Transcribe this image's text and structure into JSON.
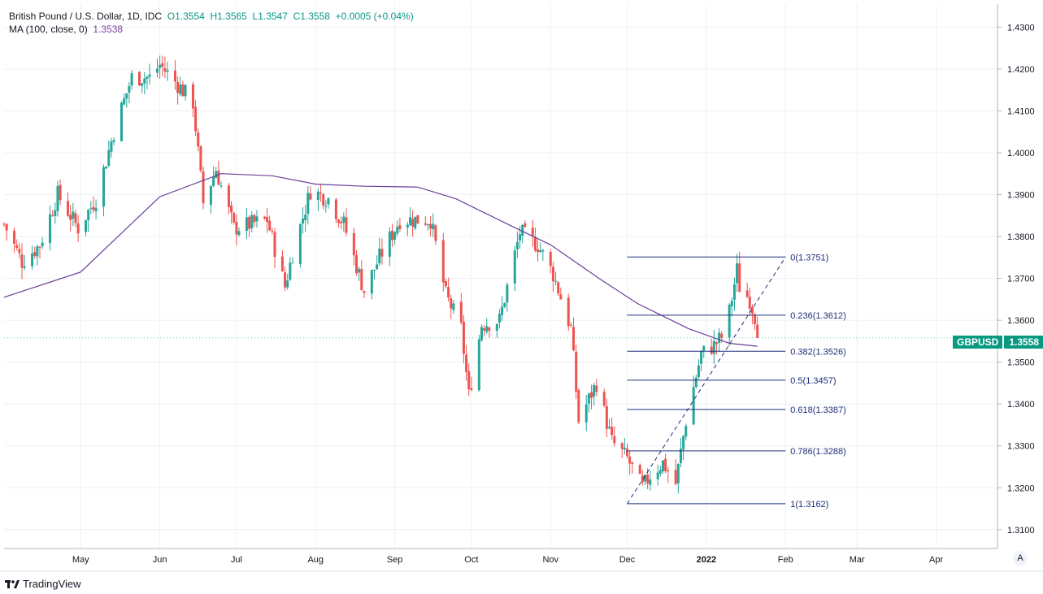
{
  "legend": {
    "symbol": "British Pound / U.S. Dollar, 1D, IDC",
    "open": "O1.3554",
    "high": "H1.3565",
    "low": "L1.3547",
    "close": "C1.3558",
    "change": "+0.0005 (+0.04%)",
    "ma_label": "MA (100, close, 0)",
    "ma_value": "1.3538"
  },
  "price_tag": {
    "ticker": "GBPUSD",
    "price": "1.3558"
  },
  "brand": "TradingView",
  "auto_label": "A",
  "colors": {
    "up": "#26a69a",
    "down": "#ef5350",
    "ma": "#6a3d9a",
    "fib": "#1f2d7a",
    "grid": "#eef0f3",
    "accent": "#089981"
  },
  "chart_data": {
    "type": "candlestick",
    "title": "British Pound / U.S. Dollar, 1D, IDC",
    "ylim": [
      1.3055,
      1.4355
    ],
    "y_ticks": [
      "1.3100",
      "1.3200",
      "1.3300",
      "1.3400",
      "1.3500",
      "1.3600",
      "1.3700",
      "1.3800",
      "1.3900",
      "1.4000",
      "1.4100",
      "1.4200",
      "1.4300"
    ],
    "x_tick_labels": [
      {
        "label": "May",
        "date": "2021-05-01"
      },
      {
        "label": "Jun",
        "date": "2021-06-01"
      },
      {
        "label": "Jul",
        "date": "2021-07-01"
      },
      {
        "label": "Aug",
        "date": "2021-08-01"
      },
      {
        "label": "Sep",
        "date": "2021-09-01"
      },
      {
        "label": "Oct",
        "date": "2021-10-01"
      },
      {
        "label": "Nov",
        "date": "2021-11-01"
      },
      {
        "label": "Dec",
        "date": "2021-12-01"
      },
      {
        "label": "2022",
        "date": "2022-01-01",
        "bold": true
      },
      {
        "label": "Feb",
        "date": "2022-02-01"
      },
      {
        "label": "Mar",
        "date": "2022-03-01"
      },
      {
        "label": "Apr",
        "date": "2022-04-01"
      }
    ],
    "x_range": [
      "2021-04-01",
      "2022-04-25"
    ],
    "price_path": [
      [
        "2021-04-01",
        1.383
      ],
      [
        "2021-04-08",
        1.374
      ],
      [
        "2021-04-15",
        1.378
      ],
      [
        "2021-04-22",
        1.39
      ],
      [
        "2021-04-30",
        1.382
      ],
      [
        "2021-05-07",
        1.389
      ],
      [
        "2021-05-14",
        1.405
      ],
      [
        "2021-05-21",
        1.418
      ],
      [
        "2021-05-28",
        1.418
      ],
      [
        "2021-06-01",
        1.421
      ],
      [
        "2021-06-07",
        1.417
      ],
      [
        "2021-06-14",
        1.412
      ],
      [
        "2021-06-18",
        1.388
      ],
      [
        "2021-06-23",
        1.396
      ],
      [
        "2021-06-30",
        1.382
      ],
      [
        "2021-07-07",
        1.383
      ],
      [
        "2021-07-13",
        1.384
      ],
      [
        "2021-07-20",
        1.368
      ],
      [
        "2021-07-23",
        1.376
      ],
      [
        "2021-07-30",
        1.391
      ],
      [
        "2021-08-06",
        1.389
      ],
      [
        "2021-08-12",
        1.383
      ],
      [
        "2021-08-20",
        1.367
      ],
      [
        "2021-08-26",
        1.375
      ],
      [
        "2021-09-03",
        1.384
      ],
      [
        "2021-09-10",
        1.384
      ],
      [
        "2021-09-15",
        1.384
      ],
      [
        "2021-09-21",
        1.366
      ],
      [
        "2021-09-27",
        1.358
      ],
      [
        "2021-09-30",
        1.342
      ],
      [
        "2021-10-05",
        1.359
      ],
      [
        "2021-10-12",
        1.36
      ],
      [
        "2021-10-20",
        1.381
      ],
      [
        "2021-10-27",
        1.378
      ],
      [
        "2021-11-02",
        1.371
      ],
      [
        "2021-11-09",
        1.358
      ],
      [
        "2021-11-12",
        1.336
      ],
      [
        "2021-11-19",
        1.345
      ],
      [
        "2021-11-25",
        1.331
      ],
      [
        "2021-12-01",
        1.327
      ],
      [
        "2021-12-07",
        1.32
      ],
      [
        "2021-12-10",
        1.323
      ],
      [
        "2021-12-15",
        1.326
      ],
      [
        "2021-12-20",
        1.321
      ],
      [
        "2021-12-24",
        1.336
      ],
      [
        "2021-12-30",
        1.352
      ],
      [
        "2022-01-04",
        1.354
      ],
      [
        "2022-01-07",
        1.356
      ],
      [
        "2022-01-10",
        1.362
      ],
      [
        "2022-01-13",
        1.372
      ],
      [
        "2022-01-14",
        1.368
      ],
      [
        "2022-01-18",
        1.365
      ],
      [
        "2022-01-20",
        1.361
      ],
      [
        "2022-01-21",
        1.3558
      ]
    ],
    "ma_series": {
      "name": "MA (100, close, 0)",
      "points": [
        [
          "2021-04-01",
          1.3655
        ],
        [
          "2021-05-01",
          1.3715
        ],
        [
          "2021-06-01",
          1.3895
        ],
        [
          "2021-06-25",
          1.395
        ],
        [
          "2021-07-15",
          1.3945
        ],
        [
          "2021-08-01",
          1.3925
        ],
        [
          "2021-08-20",
          1.392
        ],
        [
          "2021-09-10",
          1.3918
        ],
        [
          "2021-09-25",
          1.389
        ],
        [
          "2021-10-15",
          1.383
        ],
        [
          "2021-11-01",
          1.378
        ],
        [
          "2021-11-20",
          1.37
        ],
        [
          "2021-12-05",
          1.364
        ],
        [
          "2021-12-25",
          1.358
        ],
        [
          "2022-01-10",
          1.3545
        ],
        [
          "2022-01-21",
          1.3538
        ]
      ]
    },
    "fib_start": "2021-12-01",
    "fib_end": "2022-02-01",
    "fib_levels": [
      {
        "label": "0(1.3751)",
        "value": 1.3751
      },
      {
        "label": "0.236(1.3612)",
        "value": 1.3612
      },
      {
        "label": "0.382(1.3526)",
        "value": 1.3526
      },
      {
        "label": "0.5(1.3457)",
        "value": 1.3457
      },
      {
        "label": "0.618(1.3387)",
        "value": 1.3387
      },
      {
        "label": "0.786(1.3288)",
        "value": 1.3288
      },
      {
        "label": "1(1.3162)",
        "value": 1.3162
      }
    ],
    "trend_line": [
      [
        "2021-12-01",
        1.3162
      ],
      [
        "2022-02-01",
        1.3751
      ]
    ],
    "last_price": 1.3558
  }
}
